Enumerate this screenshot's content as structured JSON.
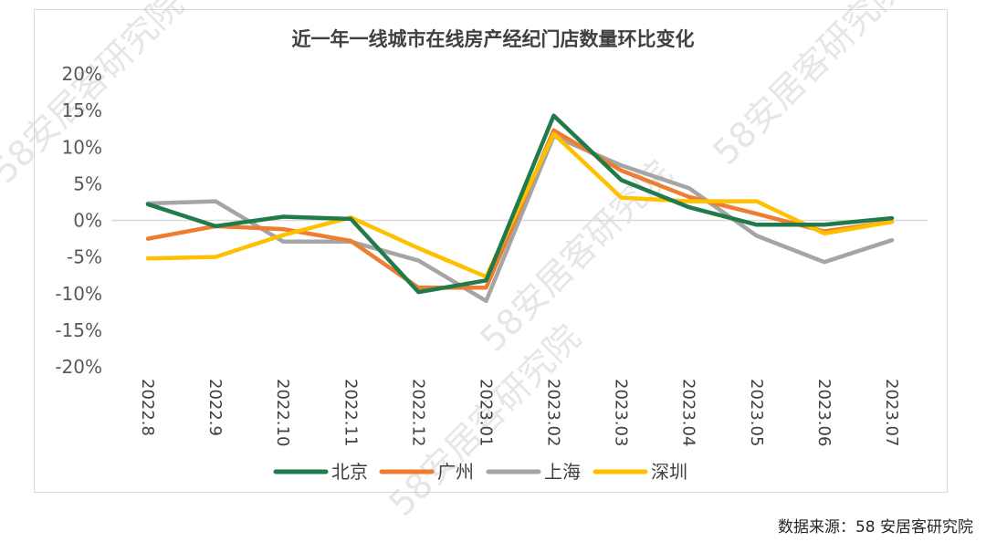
{
  "chart_data": {
    "type": "line",
    "title": "近一年一线城市在线房产经纪门店数量环比变化",
    "categories": [
      "2022.8",
      "2022.9",
      "2022.10",
      "2022.11",
      "2022.12",
      "2023.01",
      "2023.02",
      "2023.03",
      "2023.04",
      "2023.05",
      "2023.06",
      "2023.07"
    ],
    "ylim": [
      -20,
      20
    ],
    "yticks": [
      20,
      15,
      10,
      5,
      0,
      -5,
      -10,
      -15,
      -20
    ],
    "ytick_labels": [
      "20%",
      "15%",
      "10%",
      "5%",
      "0%",
      "-5%",
      "-10%",
      "-15%",
      "-20%"
    ],
    "unit": "%",
    "grid": false,
    "zero_line": true,
    "legend_position": "bottom",
    "series": [
      {
        "name": "北京",
        "color": "#217a4a",
        "values": [
          2.2,
          -0.8,
          0.5,
          0.2,
          -9.8,
          -8.2,
          14.3,
          5.5,
          1.8,
          -0.6,
          -0.6,
          0.3
        ]
      },
      {
        "name": "广州",
        "color": "#ed7d31",
        "values": [
          -2.5,
          -0.8,
          -1.2,
          -2.8,
          -9.2,
          -9.2,
          12.3,
          6.8,
          3.2,
          0.9,
          -1.5,
          -0.2
        ]
      },
      {
        "name": "上海",
        "color": "#a5a5a5",
        "values": [
          2.3,
          2.6,
          -2.9,
          -2.9,
          -5.5,
          -11.0,
          11.5,
          7.5,
          4.4,
          -2.1,
          -5.7,
          -2.7
        ]
      },
      {
        "name": "深圳",
        "color": "#ffc000",
        "values": [
          -5.2,
          -5.0,
          -2.0,
          0.4,
          -3.8,
          -7.7,
          11.8,
          3.1,
          2.6,
          2.6,
          -1.8,
          -0.2
        ]
      }
    ]
  },
  "watermark": "58安居客研究院",
  "source": "数据来源：58 安居客研究院"
}
